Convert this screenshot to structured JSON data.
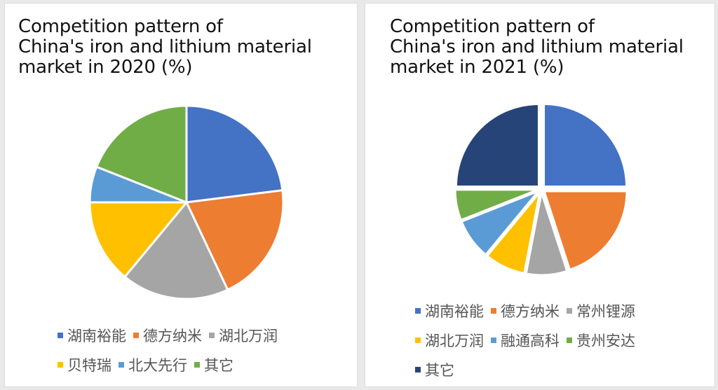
{
  "chart_data": [
    {
      "type": "pie",
      "title": [
        "Competition pattern of",
        "China's iron and lithium material",
        "market in 2020 (%)"
      ],
      "legend_position": "bottom",
      "legend_rows": [
        [
          0,
          1,
          2
        ],
        [
          3,
          4,
          5
        ]
      ],
      "slices": [
        {
          "label": "湖南裕能",
          "value": 23,
          "color": "#4472c4"
        },
        {
          "label": "德方纳米",
          "value": 20,
          "color": "#ed7d31"
        },
        {
          "label": "湖北万润",
          "value": 18,
          "color": "#a5a5a5"
        },
        {
          "label": "贝特瑞",
          "value": 14,
          "color": "#ffc000"
        },
        {
          "label": "北大先行",
          "value": 6,
          "color": "#5b9bd5"
        },
        {
          "label": "其它",
          "value": 19,
          "color": "#70ad47"
        }
      ]
    },
    {
      "type": "pie",
      "title": [
        "Competition pattern of",
        "China's iron and lithium material",
        "market in 2021 (%)"
      ],
      "legend_position": "bottom",
      "legend_rows": [
        [
          0,
          1,
          2
        ],
        [
          3,
          4,
          5
        ],
        [
          6
        ]
      ],
      "slices": [
        {
          "label": "湖南裕能",
          "value": 25,
          "color": "#4472c4"
        },
        {
          "label": "德方纳米",
          "value": 20,
          "color": "#ed7d31"
        },
        {
          "label": "常州锂源",
          "value": 8,
          "color": "#a5a5a5"
        },
        {
          "label": "湖北万润",
          "value": 8,
          "color": "#ffc000"
        },
        {
          "label": "融通高科",
          "value": 8,
          "color": "#5b9bd5"
        },
        {
          "label": "贵州安达",
          "value": 6,
          "color": "#70ad47"
        },
        {
          "label": "其它",
          "value": 25,
          "color": "#264478"
        }
      ]
    }
  ]
}
